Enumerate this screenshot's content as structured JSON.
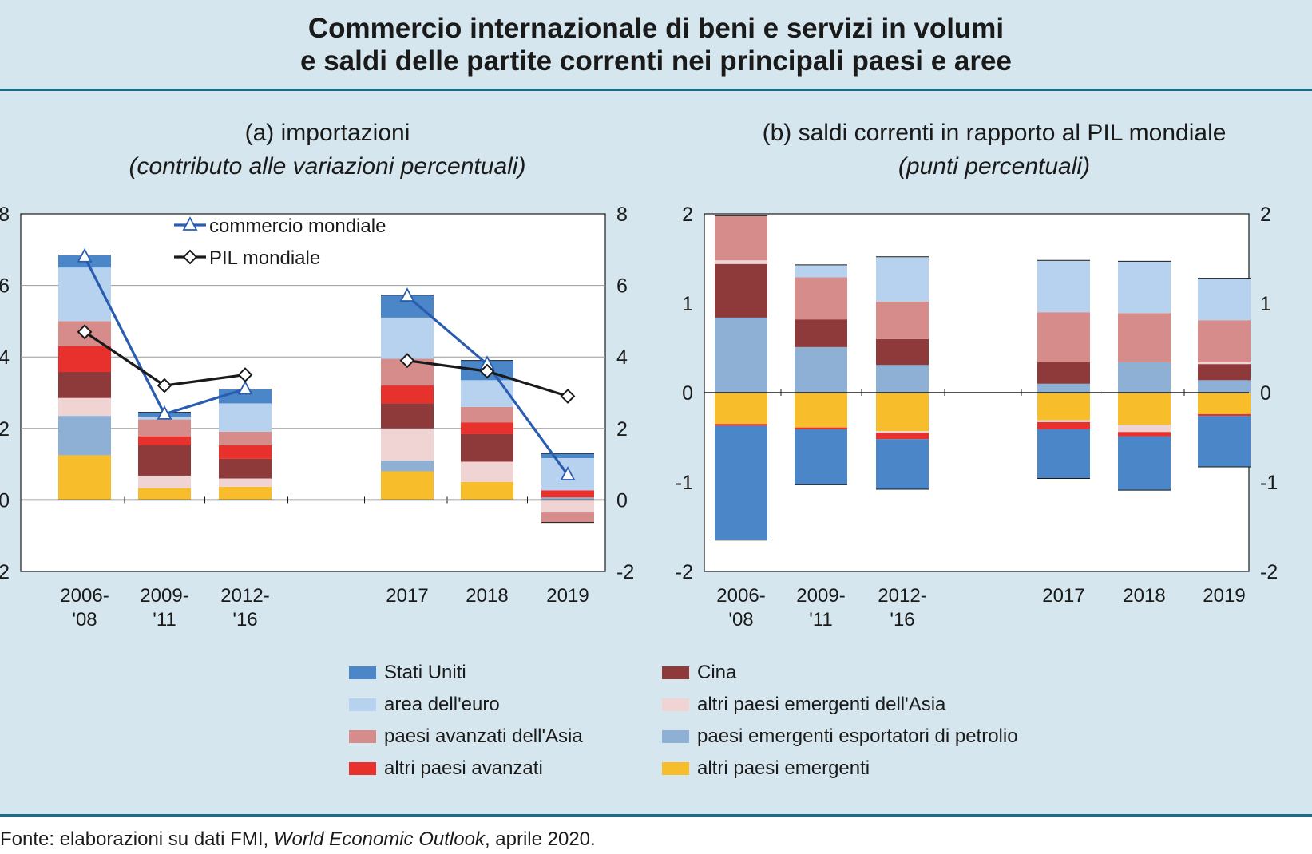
{
  "title": {
    "line1": "Commercio internazionale di beni e servizi in volumi",
    "line2": "e saldi delle partite correnti nei principali paesi e aree"
  },
  "panel_a": {
    "title": "(a) importazioni",
    "subtitle": "(contributo alle variazioni percentuali)"
  },
  "panel_b": {
    "title": "(b) saldi correnti in rapporto al PIL mondiale",
    "subtitle": "(punti percentuali)"
  },
  "source": {
    "prefix": "Fonte: elaborazioni su dati FMI, ",
    "italic": "World Economic Outlook",
    "suffix": ", aprile 2020."
  },
  "colors": {
    "stati_uniti": "#4a86c8",
    "area_euro": "#b6d2ee",
    "asia_avanzati": "#d68c8a",
    "altri_avanzati": "#e8302c",
    "cina": "#8e3a3a",
    "asia_emergenti": "#f0d4d4",
    "petrolio": "#8eb0d4",
    "altri_emergenti": "#f7bd2a",
    "commercio_line": "#2a5db0",
    "pil_line": "#1a1a1a"
  },
  "legend": [
    {
      "key": "stati_uniti",
      "label": "Stati Uniti"
    },
    {
      "key": "cina",
      "label": "Cina"
    },
    {
      "key": "area_euro",
      "label": "area dell'euro"
    },
    {
      "key": "asia_emergenti",
      "label": "altri paesi emergenti dell'Asia"
    },
    {
      "key": "asia_avanzati",
      "label": "paesi avanzati dell'Asia"
    },
    {
      "key": "petrolio",
      "label": "paesi emergenti esportatori di petrolio"
    },
    {
      "key": "altri_avanzati",
      "label": "altri paesi avanzati"
    },
    {
      "key": "altri_emergenti",
      "label": "altri paesi emergenti"
    }
  ],
  "chart_data": [
    {
      "type": "bar",
      "stacked": true,
      "title": "(a) importazioni",
      "subtitle": "(contributo alle variazioni percentuali)",
      "categories": [
        [
          "2006-",
          "'08"
        ],
        [
          "2009-",
          "'11"
        ],
        [
          "2012-",
          "'16"
        ],
        [
          "2017"
        ],
        [
          "2018"
        ],
        [
          "2019"
        ]
      ],
      "ylim": [
        -2,
        8
      ],
      "yticks": [
        -2,
        0,
        2,
        4,
        6,
        8
      ],
      "grid": true,
      "series": [
        {
          "key": "altri_emergenti",
          "name": "altri paesi emergenti",
          "values": [
            1.25,
            0.33,
            0.37,
            0.8,
            0.5,
            0.0
          ]
        },
        {
          "key": "petrolio",
          "name": "paesi emergenti esportatori di petrolio",
          "values": [
            1.1,
            0.0,
            0.0,
            0.3,
            0.0,
            0.07
          ]
        },
        {
          "key": "asia_emergenti",
          "name": "altri paesi emergenti dell'Asia",
          "values": [
            0.5,
            0.35,
            0.23,
            0.9,
            0.57,
            -0.35
          ]
        },
        {
          "key": "cina",
          "name": "Cina",
          "values": [
            0.73,
            0.85,
            0.55,
            0.7,
            0.77,
            0.0
          ]
        },
        {
          "key": "altri_avanzati",
          "name": "altri paesi avanzati",
          "values": [
            0.72,
            0.25,
            0.38,
            0.5,
            0.33,
            0.2
          ]
        },
        {
          "key": "asia_avanzati",
          "name": "paesi avanzati dell'Asia",
          "values": [
            0.7,
            0.47,
            0.38,
            0.75,
            0.43,
            -0.28
          ]
        },
        {
          "key": "area_euro",
          "name": "area dell'euro",
          "values": [
            1.5,
            0.08,
            0.79,
            1.15,
            0.75,
            0.9
          ]
        },
        {
          "key": "stati_uniti",
          "name": "Stati Uniti",
          "values": [
            0.35,
            0.12,
            0.4,
            0.63,
            0.55,
            0.13
          ]
        }
      ],
      "lines": [
        {
          "key": "commercio_line",
          "name": "commercio mondiale",
          "marker": "triangle",
          "segments": [
            [
              0,
              1,
              2
            ],
            [
              3,
              4,
              5
            ]
          ],
          "values": [
            6.8,
            2.4,
            3.1,
            5.7,
            3.8,
            0.7
          ]
        },
        {
          "key": "pil_line",
          "name": "PIL mondiale",
          "marker": "diamond",
          "segments": [
            [
              0,
              1,
              2
            ],
            [
              3,
              4,
              5
            ]
          ],
          "values": [
            4.7,
            3.2,
            3.5,
            3.9,
            3.6,
            2.9
          ]
        }
      ]
    },
    {
      "type": "bar",
      "stacked": true,
      "title": "(b) saldi correnti in rapporto al PIL mondiale",
      "subtitle": "(punti percentuali)",
      "categories": [
        [
          "2006-",
          "'08"
        ],
        [
          "2009-",
          "'11"
        ],
        [
          "2012-",
          "'16"
        ],
        [
          "2017"
        ],
        [
          "2018"
        ],
        [
          "2019"
        ]
      ],
      "ylim": [
        -2,
        2
      ],
      "yticks": [
        -2,
        -1,
        0,
        1,
        2
      ],
      "grid": false,
      "series": [
        {
          "key": "altri_emergenti",
          "name": "altri paesi emergenti",
          "values": [
            -0.35,
            -0.39,
            -0.43,
            -0.31,
            -0.36,
            -0.24
          ]
        },
        {
          "key": "asia_emergenti",
          "name": "altri paesi emergenti dell'Asia",
          "values": [
            0.0,
            0.0,
            -0.02,
            -0.02,
            -0.08,
            0.0
          ]
        },
        {
          "key": "altri_avanzati",
          "name": "altri paesi avanzati",
          "values": [
            -0.02,
            -0.02,
            -0.07,
            -0.08,
            -0.05,
            -0.02
          ]
        },
        {
          "key": "stati_uniti",
          "name": "Stati Uniti",
          "values": [
            -1.28,
            -0.62,
            -0.56,
            -0.55,
            -0.6,
            -0.57
          ]
        },
        {
          "key": "petrolio",
          "name": "paesi emergenti esportatori di petrolio",
          "values": [
            0.84,
            0.51,
            0.31,
            0.1,
            0.34,
            0.14
          ]
        },
        {
          "key": "asia_avanzati_low",
          "name": "paesi avanzati dell'Asia",
          "color_key": "asia_avanzati",
          "values": [
            0.0,
            0.0,
            0.0,
            0.0,
            0.05,
            0.0
          ]
        },
        {
          "key": "cina",
          "name": "Cina",
          "values": [
            0.6,
            0.31,
            0.29,
            0.24,
            0.0,
            0.18
          ]
        },
        {
          "key": "asia_emergenti_pos",
          "name": "altri paesi emergenti dell'Asia",
          "color_key": "asia_emergenti",
          "values": [
            0.04,
            0.0,
            0.0,
            0.0,
            0.0,
            0.02
          ]
        },
        {
          "key": "asia_avanzati",
          "name": "paesi avanzati dell'Asia",
          "values": [
            0.5,
            0.47,
            0.42,
            0.56,
            0.5,
            0.47
          ]
        },
        {
          "key": "area_euro",
          "name": "area dell'euro",
          "values": [
            0.0,
            0.14,
            0.5,
            0.58,
            0.58,
            0.47
          ]
        }
      ]
    }
  ]
}
